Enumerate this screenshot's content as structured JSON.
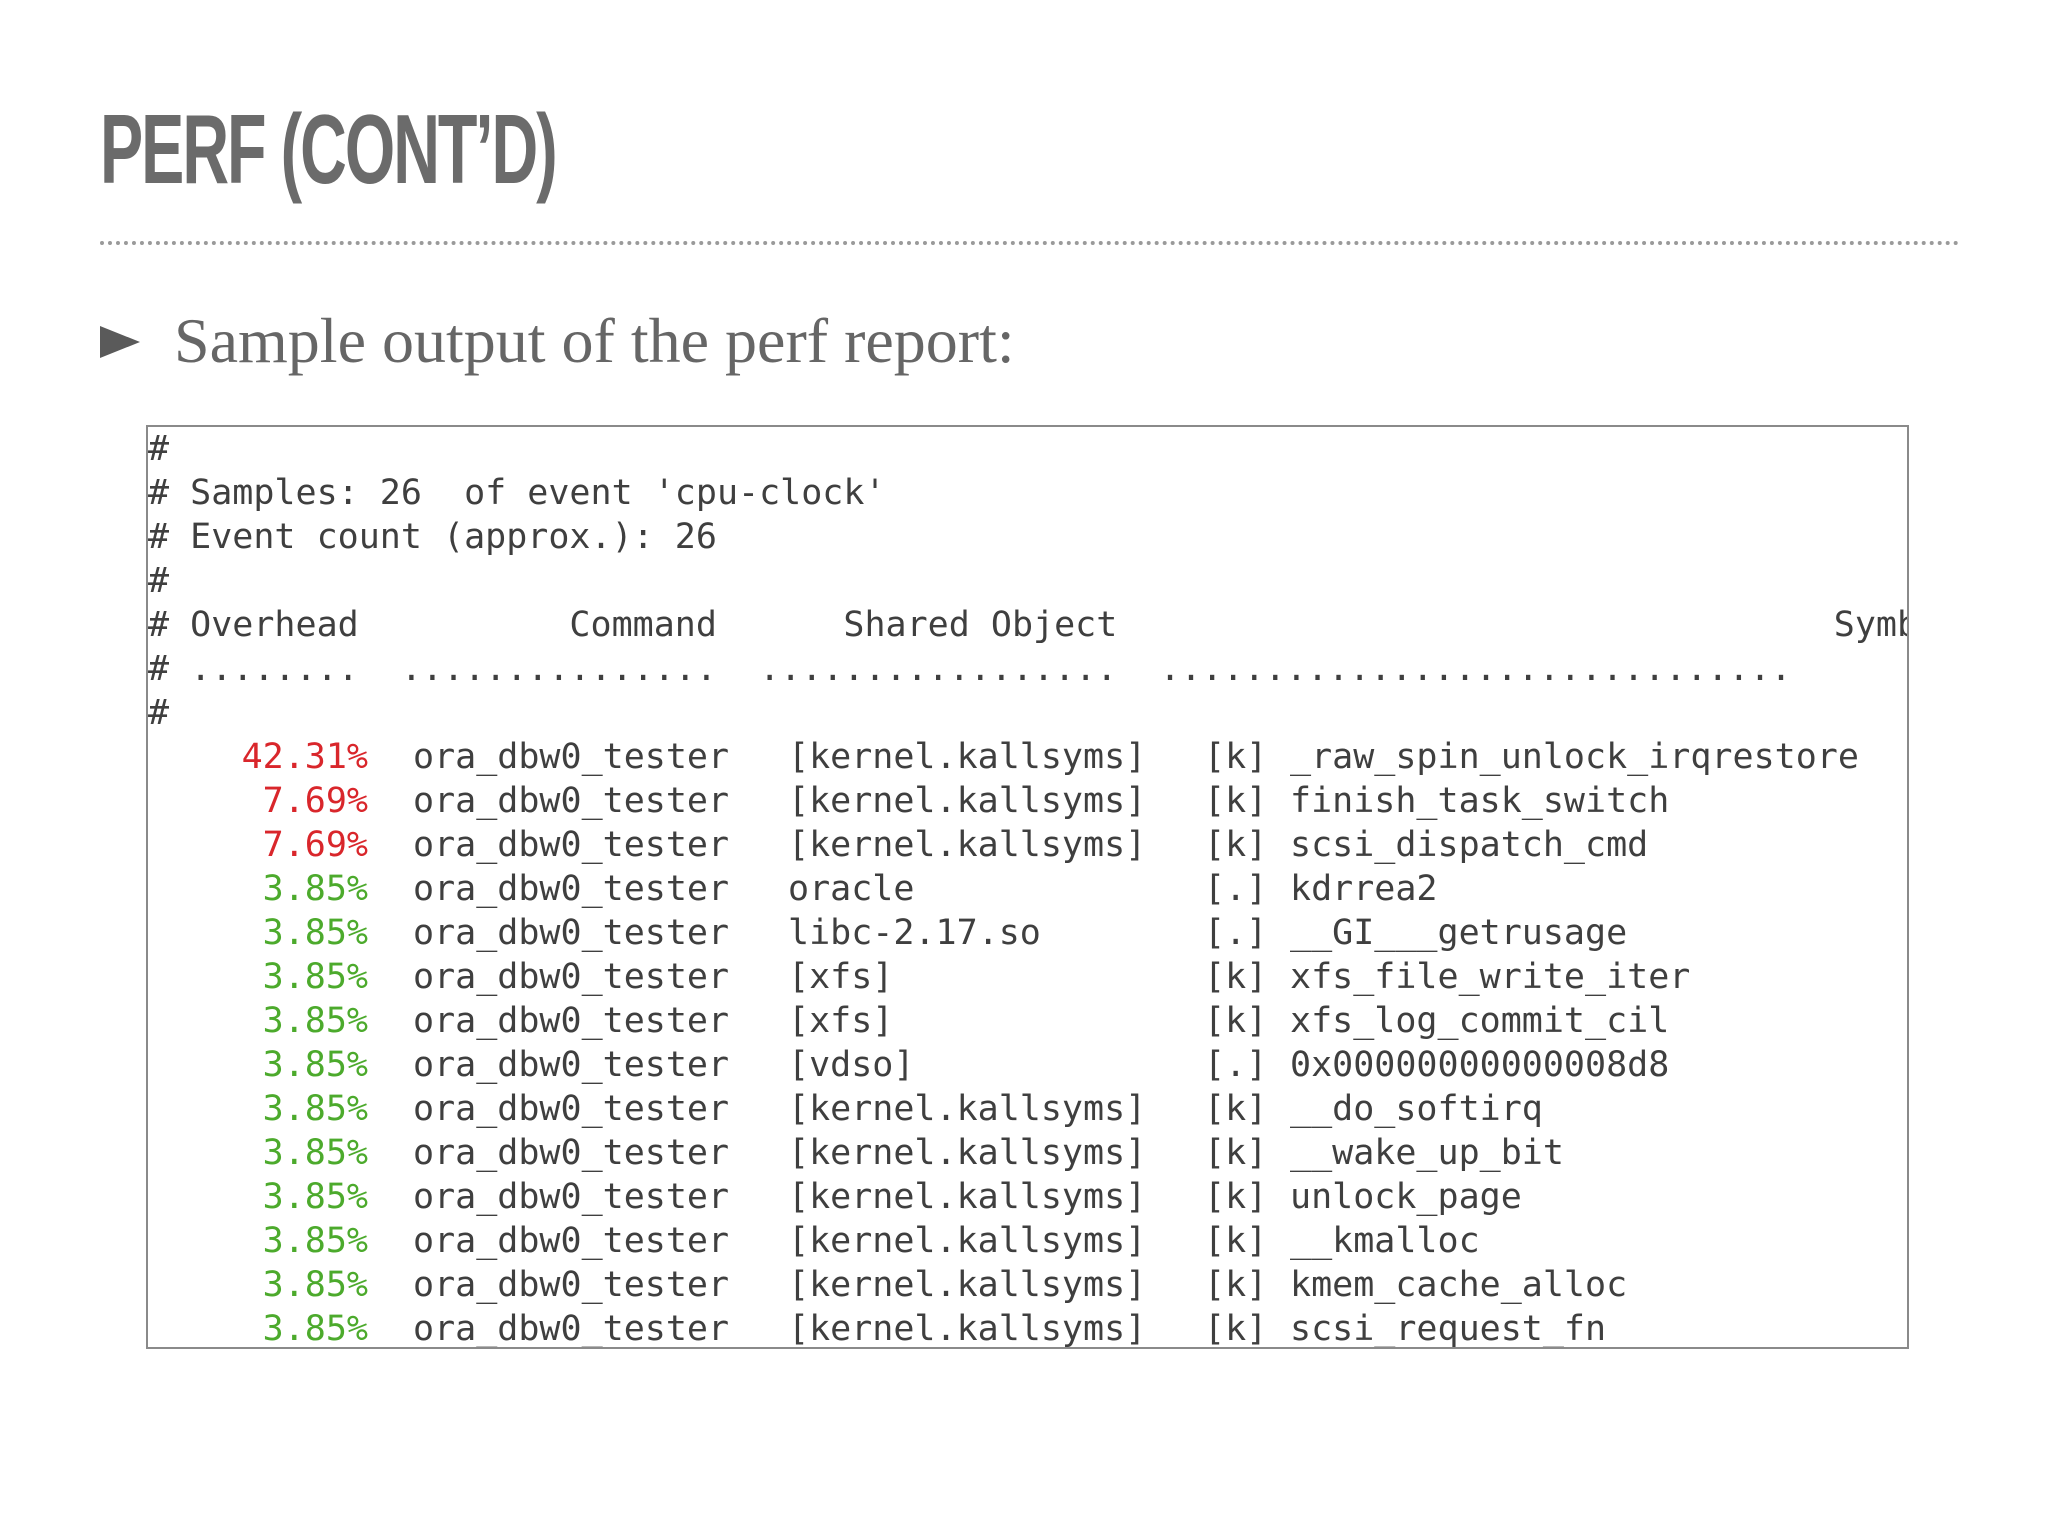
{
  "slide": {
    "title": "PERF (CONT’D)",
    "bullet": "Sample output of the perf report:"
  },
  "terminal": {
    "header_lines": [
      "#",
      "# Samples: 26  of event 'cpu-clock'",
      "# Event count (approx.): 26",
      "#",
      "# Overhead          Command      Shared Object                                  Symbol",
      "# ........  ...............  .................  ..............................",
      "#"
    ],
    "columns": [
      "Overhead",
      "Command",
      "Shared Object",
      "Symbol"
    ],
    "rows": [
      {
        "overhead": "42.31%",
        "command": "ora_dbw0_tester",
        "shared_object": "[kernel.kallsyms]",
        "kind": "[k]",
        "symbol": "_raw_spin_unlock_irqrestore",
        "color": "#d9262b"
      },
      {
        "overhead": "7.69%",
        "command": "ora_dbw0_tester",
        "shared_object": "[kernel.kallsyms]",
        "kind": "[k]",
        "symbol": "finish_task_switch",
        "color": "#d9262b"
      },
      {
        "overhead": "7.69%",
        "command": "ora_dbw0_tester",
        "shared_object": "[kernel.kallsyms]",
        "kind": "[k]",
        "symbol": "scsi_dispatch_cmd",
        "color": "#d9262b"
      },
      {
        "overhead": "3.85%",
        "command": "ora_dbw0_tester",
        "shared_object": "oracle",
        "kind": "[.]",
        "symbol": "kdrrea2",
        "color": "#4caa2c"
      },
      {
        "overhead": "3.85%",
        "command": "ora_dbw0_tester",
        "shared_object": "libc-2.17.so",
        "kind": "[.]",
        "symbol": "__GI___getrusage",
        "color": "#4caa2c"
      },
      {
        "overhead": "3.85%",
        "command": "ora_dbw0_tester",
        "shared_object": "[xfs]",
        "kind": "[k]",
        "symbol": "xfs_file_write_iter",
        "color": "#4caa2c"
      },
      {
        "overhead": "3.85%",
        "command": "ora_dbw0_tester",
        "shared_object": "[xfs]",
        "kind": "[k]",
        "symbol": "xfs_log_commit_cil",
        "color": "#4caa2c"
      },
      {
        "overhead": "3.85%",
        "command": "ora_dbw0_tester",
        "shared_object": "[vdso]",
        "kind": "[.]",
        "symbol": "0x00000000000008d8",
        "color": "#4caa2c"
      },
      {
        "overhead": "3.85%",
        "command": "ora_dbw0_tester",
        "shared_object": "[kernel.kallsyms]",
        "kind": "[k]",
        "symbol": "__do_softirq",
        "color": "#4caa2c"
      },
      {
        "overhead": "3.85%",
        "command": "ora_dbw0_tester",
        "shared_object": "[kernel.kallsyms]",
        "kind": "[k]",
        "symbol": "__wake_up_bit",
        "color": "#4caa2c"
      },
      {
        "overhead": "3.85%",
        "command": "ora_dbw0_tester",
        "shared_object": "[kernel.kallsyms]",
        "kind": "[k]",
        "symbol": "unlock_page",
        "color": "#4caa2c"
      },
      {
        "overhead": "3.85%",
        "command": "ora_dbw0_tester",
        "shared_object": "[kernel.kallsyms]",
        "kind": "[k]",
        "symbol": "__kmalloc",
        "color": "#4caa2c"
      },
      {
        "overhead": "3.85%",
        "command": "ora_dbw0_tester",
        "shared_object": "[kernel.kallsyms]",
        "kind": "[k]",
        "symbol": "kmem_cache_alloc",
        "color": "#4caa2c"
      },
      {
        "overhead": "3.85%",
        "command": "ora_dbw0_tester",
        "shared_object": "[kernel.kallsyms]",
        "kind": "[k]",
        "symbol": "scsi_request_fn",
        "color": "#4caa2c"
      }
    ]
  }
}
